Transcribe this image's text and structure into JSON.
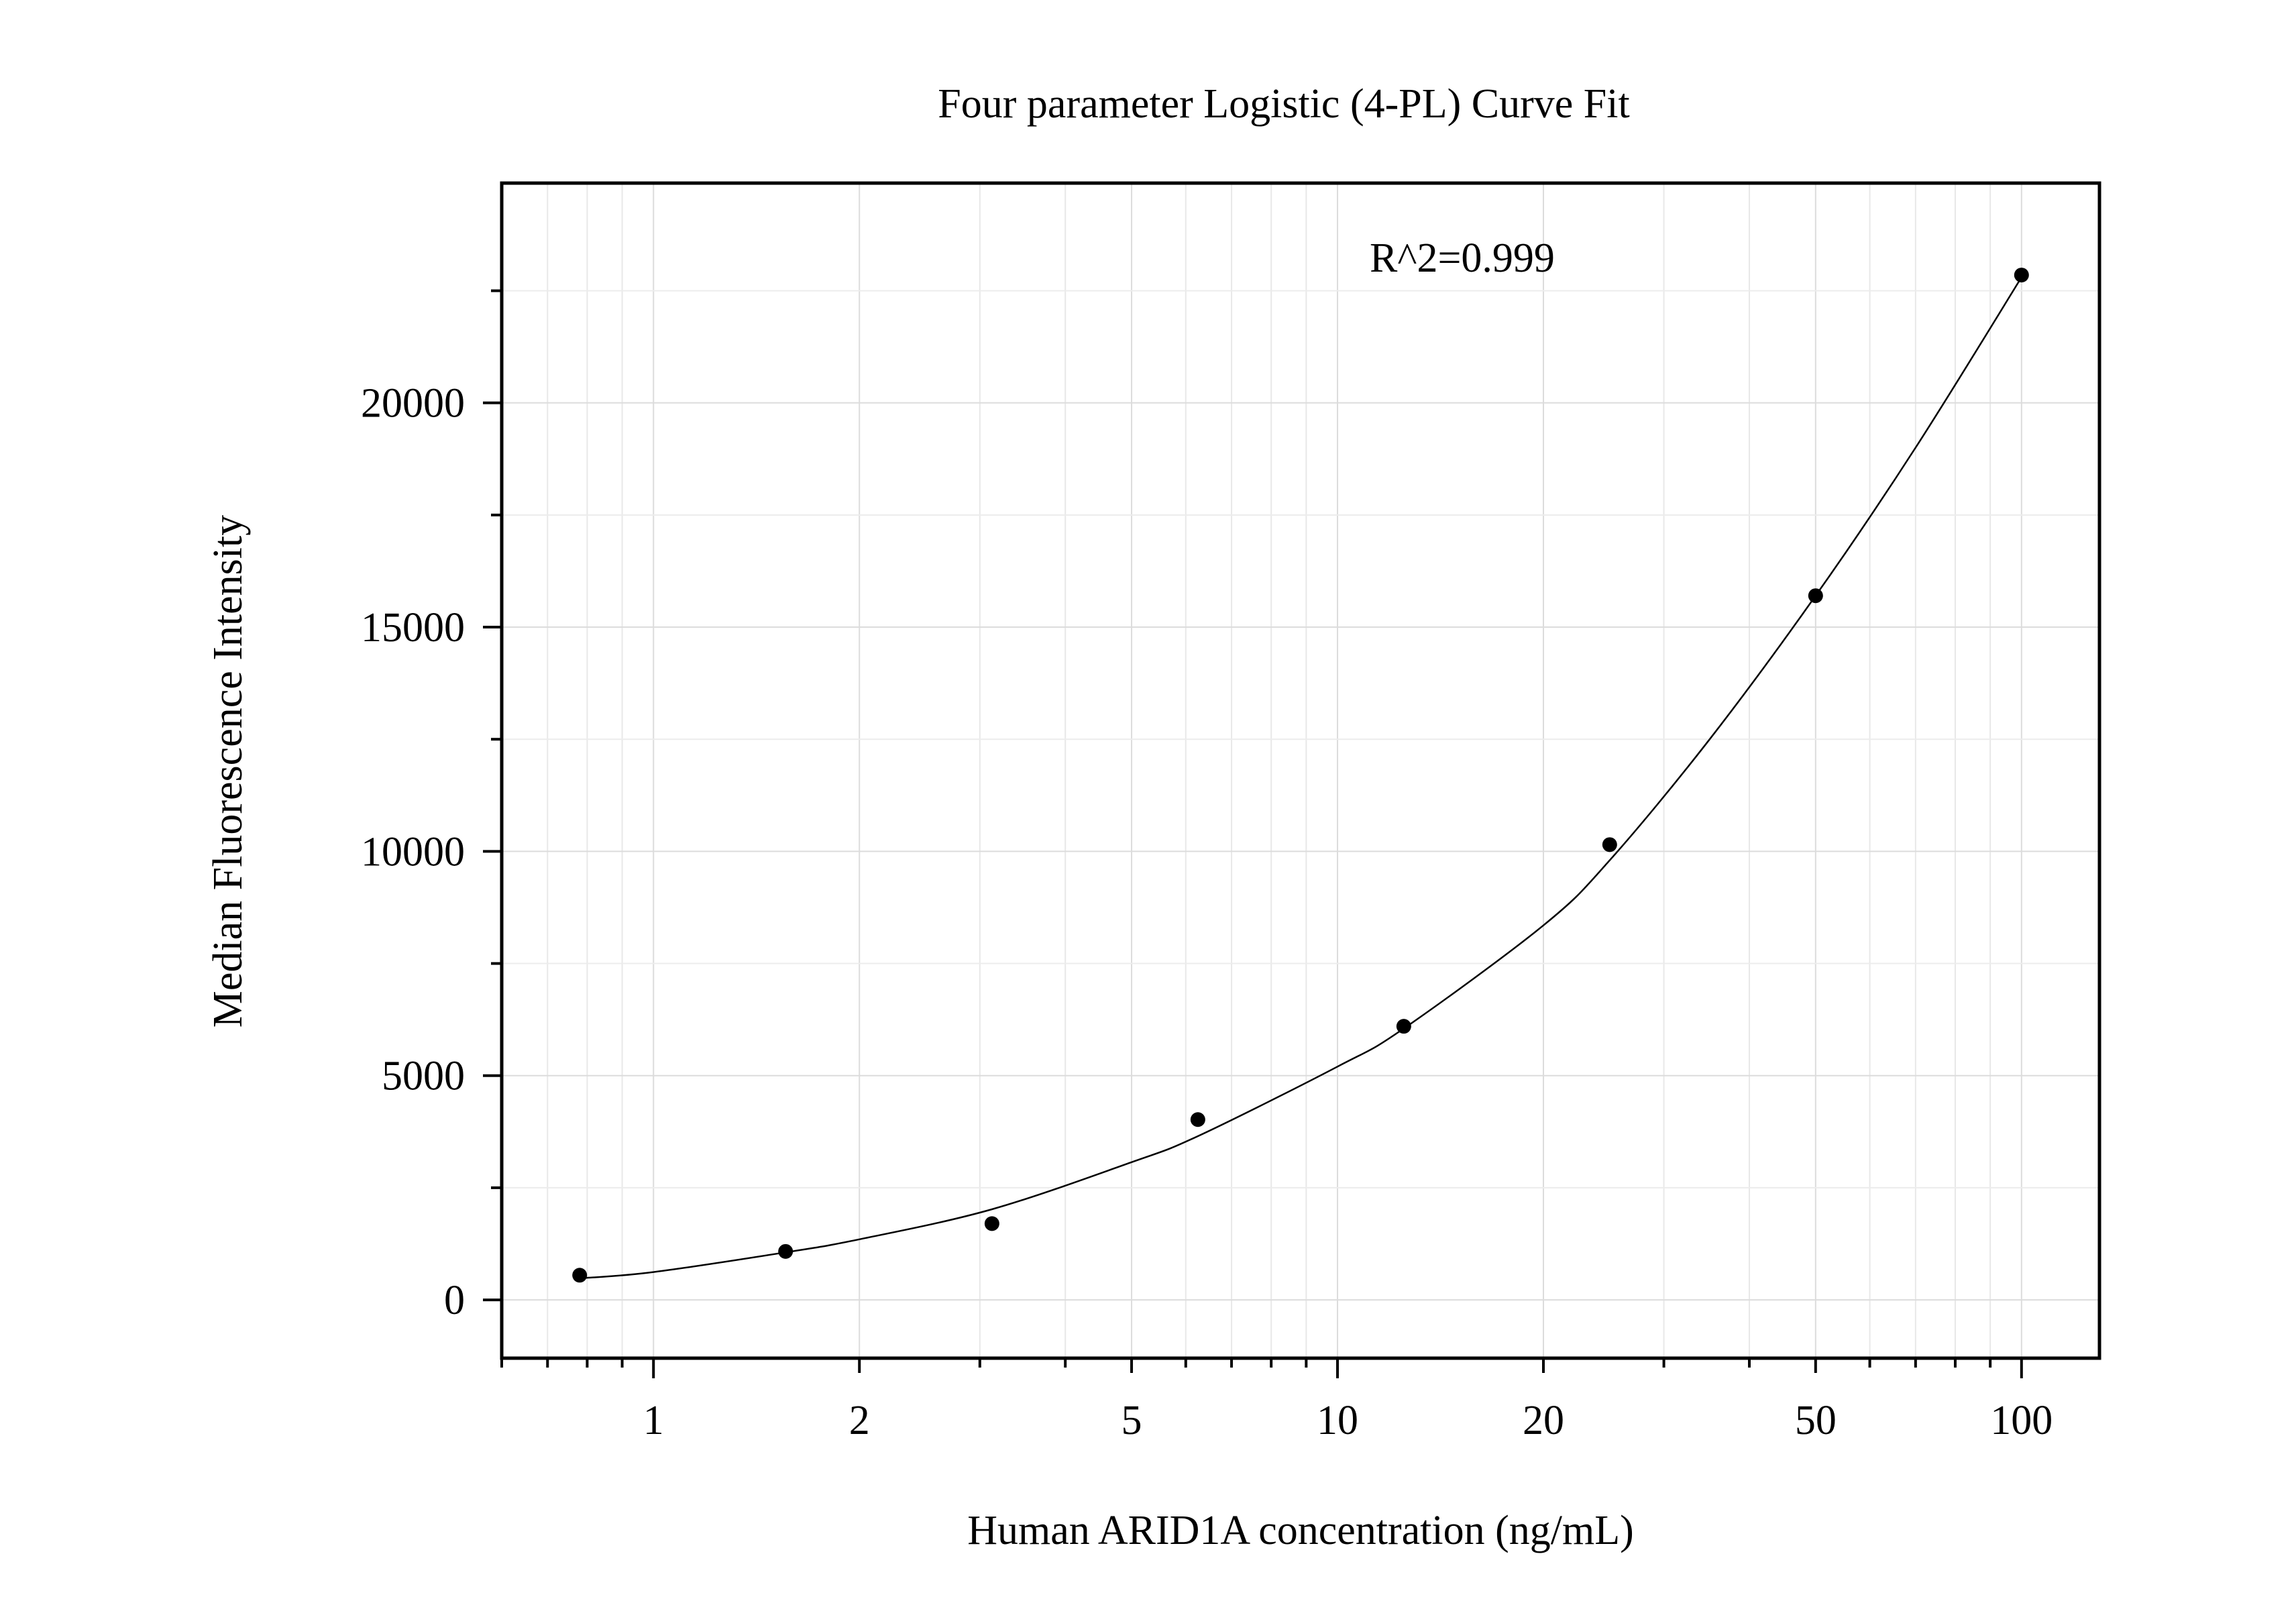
{
  "chart_data": {
    "type": "scatter",
    "title": "Four parameter Logistic (4-PL) Curve Fit",
    "xlabel": "Human ARID1A concentration (ng/mL)",
    "ylabel": "Median Fluorescence Intensity",
    "x_scale": "log",
    "xlim": [
      0.6,
      130
    ],
    "ylim": [
      -1300,
      24900
    ],
    "x_ticks": [
      1,
      2,
      5,
      10,
      20,
      50,
      100
    ],
    "x_tick_labels": [
      "1",
      "2",
      "5",
      "10",
      "20",
      "50",
      "100"
    ],
    "y_ticks": [
      0,
      5000,
      10000,
      15000,
      20000
    ],
    "y_tick_labels": [
      "0",
      "5000",
      "10000",
      "15000",
      "20000"
    ],
    "grid": true,
    "annotation": "R^2=0.999",
    "series": [
      {
        "kind": "points",
        "x": [
          0.78,
          1.56,
          3.125,
          6.25,
          12.5,
          25,
          50,
          100
        ],
        "y": [
          550,
          1080,
          1700,
          4020,
          6100,
          10150,
          15700,
          22850
        ],
        "color": "#000000"
      },
      {
        "kind": "fit-curve",
        "x": [
          0.78,
          1.0,
          1.56,
          2.0,
          3.125,
          5.0,
          6.25,
          10.0,
          12.5,
          20.0,
          25.0,
          35.0,
          50.0,
          70.0,
          100.0
        ],
        "y": [
          480,
          620,
          1060,
          1350,
          2020,
          3070,
          3650,
          5200,
          6050,
          8350,
          9800,
          12500,
          15700,
          19000,
          22800
        ],
        "color": "#000000"
      }
    ]
  }
}
